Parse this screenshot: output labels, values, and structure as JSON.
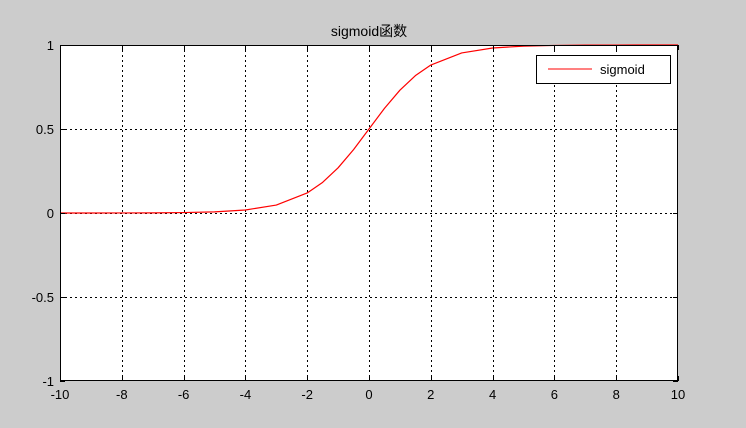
{
  "chart_data": {
    "type": "line",
    "title": "sigmoid函数",
    "xlabel": "",
    "ylabel": "",
    "xlim": [
      -10,
      10
    ],
    "ylim": [
      -1,
      1
    ],
    "x_ticks": [
      -10,
      -8,
      -6,
      -4,
      -2,
      0,
      2,
      4,
      6,
      8,
      10
    ],
    "x_tick_labels": [
      "-10",
      "-8",
      "-6",
      "-4",
      "-2",
      "0",
      "2",
      "4",
      "6",
      "8",
      "10"
    ],
    "y_ticks": [
      -1,
      -0.5,
      0,
      0.5,
      1
    ],
    "y_tick_labels": [
      "-1",
      "-0.5",
      "0",
      "0.5",
      "1"
    ],
    "grid": true,
    "grid_style": "dotted",
    "legend": {
      "placement": "top-right",
      "entries": [
        "sigmoid"
      ]
    },
    "series": [
      {
        "name": "sigmoid",
        "color": "#ff0000",
        "x": [
          -10,
          -9,
          -8,
          -7,
          -6,
          -5,
          -4,
          -3,
          -2,
          -1.5,
          -1,
          -0.5,
          0,
          0.5,
          1,
          1.5,
          2,
          3,
          4,
          5,
          6,
          7,
          8,
          9,
          10
        ],
        "y": [
          0.0,
          0.0001,
          0.0003,
          0.0009,
          0.0025,
          0.0067,
          0.018,
          0.0474,
          0.1192,
          0.1824,
          0.2689,
          0.3775,
          0.5,
          0.6225,
          0.7311,
          0.8176,
          0.8808,
          0.9526,
          0.982,
          0.9933,
          0.9975,
          0.9991,
          0.9997,
          0.9999,
          1.0
        ]
      }
    ]
  }
}
